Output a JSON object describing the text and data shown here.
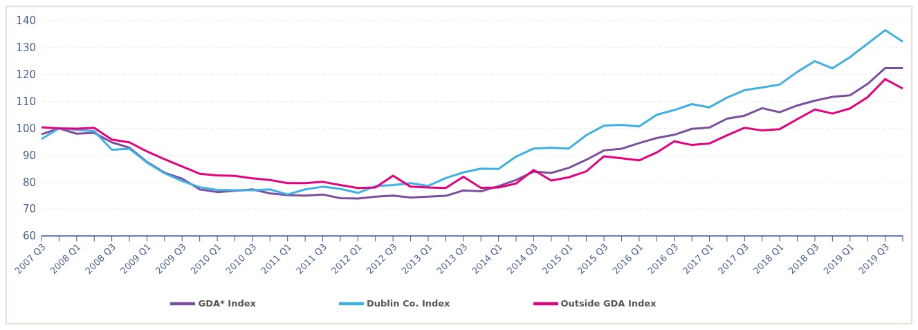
{
  "chart_data": {
    "type": "line",
    "categories": [
      "2007 Q3",
      null,
      "2008 Q1",
      null,
      "2008 Q3",
      null,
      "2009 Q1",
      null,
      "2009 Q3",
      null,
      "2010 Q1",
      null,
      "2010 Q3",
      null,
      "2011 Q1",
      null,
      "2011 Q3",
      null,
      "2012 Q1",
      null,
      "2012 Q3",
      null,
      "2013 Q1",
      null,
      "2013 Q3",
      null,
      "2014 Q1",
      null,
      "2014 Q3",
      null,
      "2015 Q1",
      null,
      "2015 Q3",
      null,
      "2016 Q1",
      null,
      "2016 Q3",
      null,
      "2017 Q1",
      null,
      "2017 Q3",
      null,
      "2018 Q1",
      null,
      "2018 Q3",
      null,
      "2019 Q1",
      null,
      "2019 Q3",
      null
    ],
    "series": [
      {
        "name": "GDA* Index",
        "color": "#7b4fa0",
        "values": [
          97.8,
          100,
          98,
          98.3,
          94.8,
          92.8,
          87.5,
          83.5,
          81.3,
          77.3,
          76.3,
          76.8,
          77.3,
          75.8,
          75.2,
          75.0,
          75.4,
          74.0,
          73.9,
          74.6,
          75.0,
          74.3,
          74.6,
          74.9,
          76.9,
          76.6,
          78.5,
          80.8,
          83.9,
          83.4,
          85.3,
          88.3,
          91.8,
          92.4,
          94.5,
          96.4,
          97.6,
          99.8,
          100.3,
          103.6,
          104.7,
          107.5,
          106.0,
          108.5,
          110.3,
          111.7,
          112.3,
          116.5,
          122.4,
          122.4
        ]
      },
      {
        "name": "Dublin Co. Index",
        "color": "#3db0e5",
        "values": [
          96,
          100,
          99.5,
          99,
          92,
          92.4,
          87.3,
          83.3,
          80.4,
          78.1,
          77.1,
          77,
          77,
          77.3,
          75.4,
          77.3,
          78.3,
          77.5,
          76.0,
          78.5,
          78.9,
          79.6,
          78.6,
          81.5,
          83.6,
          85,
          84.9,
          89.5,
          92.5,
          92.8,
          92.5,
          97.5,
          101,
          101.3,
          100.7,
          105,
          106.8,
          109,
          107.8,
          111.4,
          114.2,
          115.2,
          116.3,
          121,
          125,
          122.3,
          126.5,
          131.5,
          136.5,
          132.2
        ]
      },
      {
        "name": "Outside GDA Index",
        "color": "#e6007e",
        "values": [
          100.4,
          100,
          99.9,
          100.2,
          95.8,
          94.8,
          91.4,
          88.5,
          85.8,
          83.1,
          82.5,
          82.3,
          81.4,
          80.8,
          79.6,
          79.6,
          80.1,
          78.9,
          77.8,
          78,
          82.4,
          78.3,
          78,
          77.8,
          82,
          77.9,
          78,
          79.5,
          84.5,
          80.6,
          81.8,
          84,
          89.6,
          88.9,
          88.1,
          91,
          95.2,
          93.8,
          94.4,
          97.4,
          100.2,
          99.2,
          99.7,
          103.4,
          107,
          105.5,
          107.4,
          111.6,
          118.3,
          114.8
        ]
      }
    ],
    "ylim": [
      60,
      140
    ],
    "yticks": [
      60,
      70,
      80,
      90,
      100,
      110,
      120,
      130,
      140
    ],
    "grid": "y",
    "legend": "bottom",
    "marker": "none",
    "line_style": "solid"
  }
}
